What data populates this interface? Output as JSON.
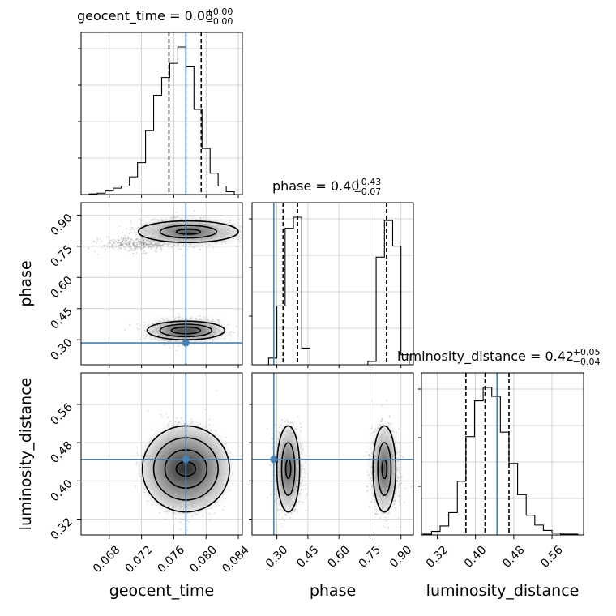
{
  "chart_data": {
    "type": "corner",
    "parameters": [
      "geocent_time",
      "phase",
      "luminosity_distance"
    ],
    "titles": [
      {
        "param": "geocent_time",
        "text": "geocent_time = 0.08",
        "plus": "+0.00",
        "minus": "−0.00",
        "median": 0.0775,
        "q_low": 0.0754,
        "q_high": 0.0794
      },
      {
        "param": "phase",
        "text": "phase = 0.40",
        "plus": "+0.43",
        "minus": "−0.07",
        "median": 0.4,
        "q_low": 0.33,
        "q_high": 0.83
      },
      {
        "param": "luminosity_distance",
        "text": "luminosity_distance = 0.42",
        "plus": "+0.05",
        "minus": "−0.04",
        "median": 0.42,
        "q_low": 0.38,
        "q_high": 0.47
      }
    ],
    "axis_labels": {
      "x": [
        "geocent_time",
        "phase",
        "luminosity_distance"
      ],
      "y": [
        "phase",
        "luminosity_distance"
      ]
    },
    "ranges": {
      "geocent_time": [
        0.0645,
        0.0845
      ],
      "phase": [
        0.18,
        0.96
      ],
      "luminosity_distance": [
        0.287,
        0.626
      ]
    },
    "tick_labels": {
      "geocent_time": [
        "0.068",
        "0.072",
        "0.076",
        "0.080",
        "0.084"
      ],
      "phase": [
        "0.30",
        "0.45",
        "0.60",
        "0.75",
        "0.90"
      ],
      "luminosity_distance": [
        "0.32",
        "0.40",
        "0.48",
        "0.56"
      ]
    },
    "tick_values": {
      "geocent_time": [
        0.068,
        0.072,
        0.076,
        0.08,
        0.084
      ],
      "phase": [
        0.3,
        0.45,
        0.6,
        0.75,
        0.9
      ],
      "luminosity_distance": [
        0.32,
        0.4,
        0.48,
        0.56
      ]
    },
    "truths": {
      "geocent_time": 0.0775,
      "phase": 0.285,
      "luminosity_distance": 0.445
    },
    "histograms": {
      "geocent_time": {
        "bin_edges": [
          0.0655,
          0.0665,
          0.0675,
          0.0685,
          0.0695,
          0.0705,
          0.0715,
          0.0725,
          0.0735,
          0.0745,
          0.0755,
          0.0765,
          0.0775,
          0.0785,
          0.0795,
          0.0805,
          0.0815,
          0.0825,
          0.0835
        ],
        "counts": [
          1,
          2,
          5,
          9,
          12,
          25,
          45,
          90,
          140,
          165,
          185,
          208,
          180,
          120,
          65,
          30,
          12,
          4
        ]
      },
      "phase": {
        "bin_edges": [
          0.18,
          0.22,
          0.26,
          0.3,
          0.34,
          0.38,
          0.42,
          0.46,
          0.5,
          0.54,
          0.58,
          0.62,
          0.66,
          0.7,
          0.74,
          0.78,
          0.82,
          0.86,
          0.9,
          0.94
        ],
        "counts": [
          0,
          0,
          6,
          53,
          123,
          133,
          15,
          0,
          0,
          0,
          0,
          0,
          0,
          0,
          3,
          97,
          130,
          107,
          9
        ]
      },
      "luminosity_distance": {
        "bin_edges": [
          0.29,
          0.308,
          0.326,
          0.344,
          0.362,
          0.38,
          0.398,
          0.416,
          0.434,
          0.452,
          0.47,
          0.488,
          0.506,
          0.524,
          0.542,
          0.56,
          0.578,
          0.596,
          0.614
        ],
        "counts": [
          1,
          4,
          10,
          25,
          60,
          110,
          150,
          165,
          155,
          115,
          80,
          45,
          22,
          11,
          5,
          2,
          1,
          1
        ]
      }
    },
    "scatter_2d": [
      {
        "x": "geocent_time",
        "y": "phase",
        "clusters": [
          {
            "cx": 0.0775,
            "cy": 0.345,
            "sx": 0.002,
            "sy": 0.024,
            "n": 1600
          },
          {
            "cx": 0.0775,
            "cy": 0.82,
            "sx": 0.0028,
            "sy": 0.028,
            "n": 1500
          },
          {
            "cx": 0.0715,
            "cy": 0.76,
            "sx": 0.0022,
            "sy": 0.018,
            "n": 400
          }
        ],
        "contours": [
          {
            "cx": 0.0775,
            "cy": 0.345,
            "rx": [
              0.0018,
              0.0032,
              0.0048
            ],
            "ry": [
              0.016,
              0.03,
              0.045
            ]
          },
          {
            "cx": 0.0778,
            "cy": 0.82,
            "rx": [
              0.0015,
              0.0035,
              0.0062
            ],
            "ry": [
              0.012,
              0.03,
              0.052
            ]
          }
        ]
      },
      {
        "x": "geocent_time",
        "y": "luminosity_distance",
        "clusters": [
          {
            "cx": 0.0775,
            "cy": 0.425,
            "sx": 0.002,
            "sy": 0.038,
            "n": 2500
          }
        ],
        "contours": [
          {
            "cx": 0.0775,
            "cy": 0.425,
            "rx": [
              0.0012,
              0.0026,
              0.004,
              0.0054
            ],
            "ry": [
              0.015,
              0.04,
              0.065,
              0.09
            ]
          }
        ]
      },
      {
        "x": "phase",
        "y": "luminosity_distance",
        "clusters": [
          {
            "cx": 0.355,
            "cy": 0.425,
            "sx": 0.03,
            "sy": 0.04,
            "n": 1300
          },
          {
            "cx": 0.82,
            "cy": 0.425,
            "sx": 0.03,
            "sy": 0.04,
            "n": 1300
          }
        ],
        "contours": [
          {
            "cx": 0.355,
            "cy": 0.425,
            "rx": [
              0.012,
              0.032,
              0.055
            ],
            "ry": [
              0.02,
              0.055,
              0.09
            ]
          },
          {
            "cx": 0.82,
            "cy": 0.425,
            "rx": [
              0.012,
              0.032,
              0.055
            ],
            "ry": [
              0.02,
              0.055,
              0.09
            ]
          }
        ]
      }
    ],
    "grid": true,
    "colors": {
      "truth": "#4682b4",
      "hist": "#000000",
      "points": "#8c8c8c"
    }
  }
}
